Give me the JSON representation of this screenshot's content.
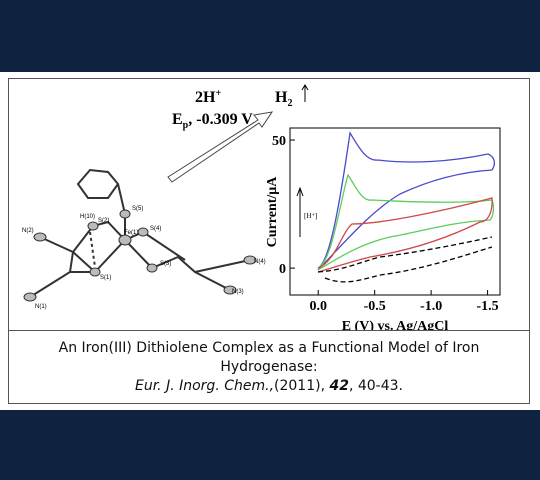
{
  "reaction": {
    "reactant": "2H",
    "reactant_charge": "+",
    "potential_symbol": "E",
    "potential_subscript": "p",
    "potential": ", -0.309 V",
    "product": "H",
    "product_subscript": "2"
  },
  "molecule": {
    "atoms": [
      "Fe(1)",
      "S(1)",
      "S(2)",
      "S(3)",
      "S(4)",
      "S(5)",
      "N(1)",
      "N(2)",
      "N(3)",
      "N(4)",
      "H(10)"
    ]
  },
  "voltammogram": {
    "ylabel": "Current/μA",
    "xlabel": "E (V) vs. Ag/AgCl",
    "arrow_label": "[H⁺]",
    "xlim": [
      0.25,
      -1.61
    ],
    "ylim": [
      -10.5,
      54.7
    ],
    "xticks": [
      {
        "value": 0,
        "label": "0.0"
      },
      -0.5,
      {
        "value": -1,
        "label": "-1.0"
      },
      -1.5
    ],
    "yticks": [
      0,
      50
    ]
  },
  "caption": {
    "title": "An Iron(III) Dithiolene Complex as a Functional Model of Iron Hydrogenase:",
    "journal": "Eur. J. Inorg. Chem.,",
    "year": "(2011),",
    "volume": "42",
    "pages": ", 40-43."
  }
}
